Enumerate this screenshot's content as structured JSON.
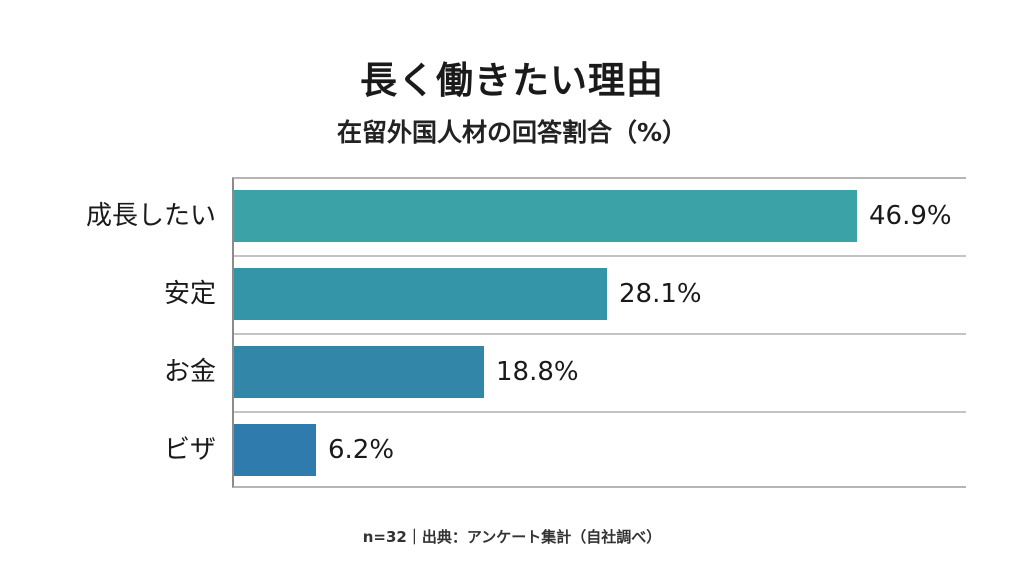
{
  "title": "長く働きたい理由",
  "subtitle": "在留外国人材の回答割合（%）",
  "footer": "n=32｜出典：アンケート集計（自社調べ）",
  "chart_data": {
    "type": "bar",
    "orientation": "horizontal",
    "title": "長く働きたい理由",
    "subtitle": "在留外国人材の回答割合（%）",
    "categories": [
      "成長したい",
      "安定",
      "お金",
      "ビザ"
    ],
    "values": [
      46.9,
      28.1,
      18.8,
      6.2
    ],
    "value_labels": [
      "46.9%",
      "28.1%",
      "18.8%",
      "6.2%"
    ],
    "colors": [
      "#3ba3a8",
      "#3494a8",
      "#3286a8",
      "#2f7bae"
    ],
    "xlabel": "",
    "ylabel": "",
    "xlim": [
      0,
      55
    ],
    "grid": false,
    "legend": "none",
    "note": "n=32｜出典：アンケート集計（自社調べ）"
  }
}
